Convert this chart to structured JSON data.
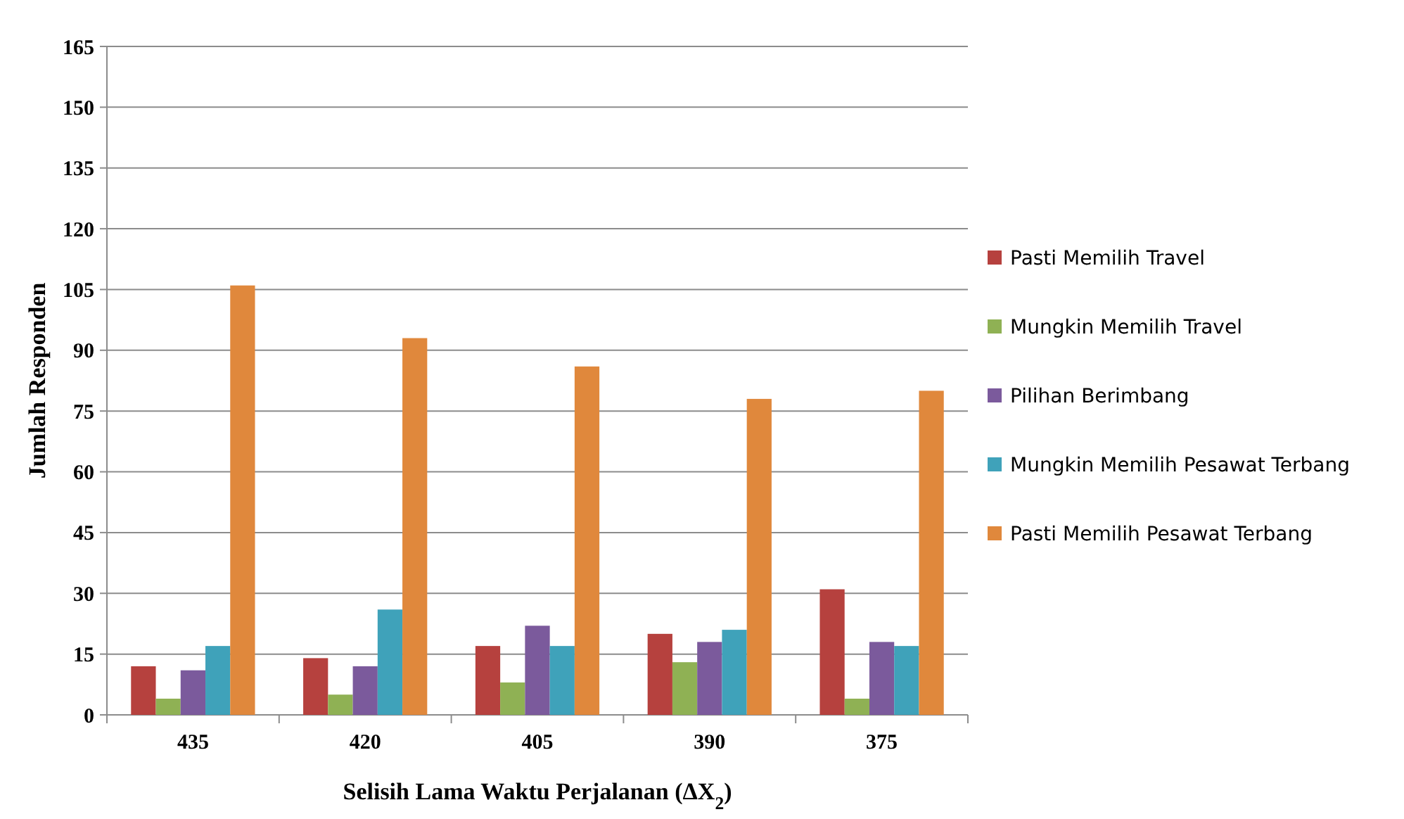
{
  "chart_data": {
    "type": "bar",
    "xlabel": "Selisih Lama Waktu Perjalanan (ΔX$_{2}$)",
    "ylabel": "Jumlah Responden",
    "categories": [
      "435",
      "420",
      "405",
      "390",
      "375"
    ],
    "series": [
      {
        "name": "Pasti Memilih Travel",
        "color": "#b6413e",
        "values": [
          12,
          14,
          17,
          20,
          31
        ]
      },
      {
        "name": "Mungkin Memilih Travel",
        "color": "#8fb154",
        "values": [
          4,
          5,
          8,
          13,
          4
        ]
      },
      {
        "name": "Pilihan Berimbang",
        "color": "#7b5a9c",
        "values": [
          11,
          12,
          22,
          18,
          18
        ]
      },
      {
        "name": "Mungkin Memilih Pesawat Terbang",
        "color": "#3fa2ba",
        "values": [
          17,
          26,
          17,
          21,
          17
        ]
      },
      {
        "name": "Pasti Memilih Pesawat Terbang",
        "color": "#e0883c",
        "values": [
          106,
          93,
          86,
          78,
          80
        ]
      }
    ],
    "ylim": [
      0,
      165
    ],
    "yticks": [
      0,
      15,
      30,
      45,
      60,
      75,
      90,
      105,
      120,
      135,
      150,
      165
    ],
    "grid": "y",
    "legend": "right"
  }
}
